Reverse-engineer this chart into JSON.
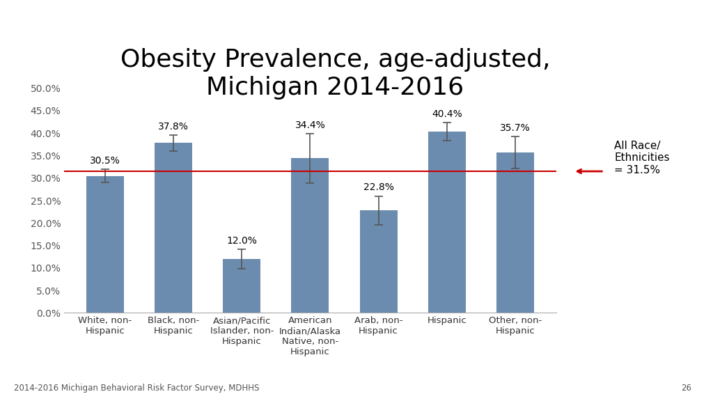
{
  "title": "Obesity Prevalence, age-adjusted,\nMichigan 2014-2016",
  "categories": [
    "White, non-\nHispanic",
    "Black, non-\nHispanic",
    "Asian/Pacific\nIslander, non-\nHispanic",
    "American\nIndian/Alaska\nNative, non-\nHispanic",
    "Arab, non-\nHispanic",
    "Hispanic",
    "Other, non-\nHispanic"
  ],
  "values": [
    30.5,
    37.8,
    12.0,
    34.4,
    22.8,
    40.4,
    35.7
  ],
  "errors": [
    1.5,
    1.8,
    2.2,
    5.5,
    3.2,
    2.0,
    3.5
  ],
  "bar_color": "#6b8cae",
  "reference_line": 31.5,
  "reference_line_color": "#cc0000",
  "reference_label": "All Race/\nEthnicities\n= 31.5%",
  "ylim": [
    0,
    50
  ],
  "ytick_labels": [
    "0.0%",
    "5.0%",
    "10.0%",
    "15.0%",
    "20.0%",
    "25.0%",
    "30.0%",
    "35.0%",
    "40.0%",
    "45.0%",
    "50.0%"
  ],
  "ytick_values": [
    0,
    5,
    10,
    15,
    20,
    25,
    30,
    35,
    40,
    45,
    50
  ],
  "title_fontsize": 26,
  "tick_fontsize": 10,
  "label_fontsize": 9.5,
  "bar_label_fontsize": 10,
  "footer_text": "2014-2016 Michigan Behavioral Risk Factor Survey, MDHHS",
  "page_number": "26",
  "background_color": "#ffffff"
}
